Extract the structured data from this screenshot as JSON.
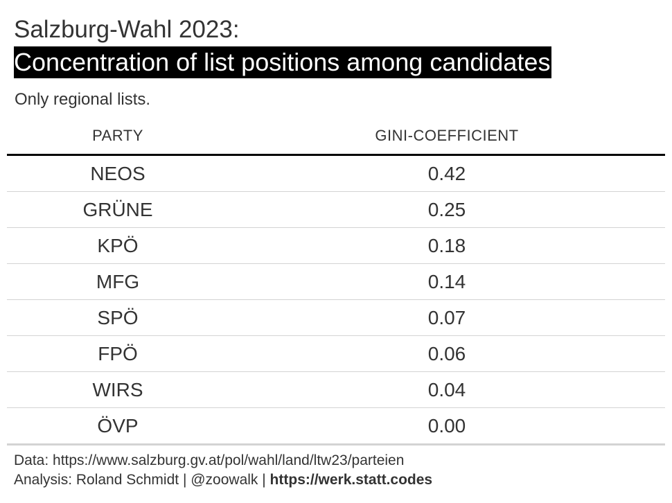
{
  "title": "Salzburg-Wahl 2023:",
  "headline": "Concentration of list positions among candidates",
  "subtitle": "Only regional lists.",
  "chart_data": {
    "type": "table",
    "columns": [
      "PARTY",
      "GINI-COEFFICIENT"
    ],
    "rows": [
      {
        "party": "NEOS",
        "gini": "0.42"
      },
      {
        "party": "GRÜNE",
        "gini": "0.25"
      },
      {
        "party": "KPÖ",
        "gini": "0.18"
      },
      {
        "party": "MFG",
        "gini": "0.14"
      },
      {
        "party": "SPÖ",
        "gini": "0.07"
      },
      {
        "party": "FPÖ",
        "gini": "0.06"
      },
      {
        "party": "WIRS",
        "gini": "0.04"
      },
      {
        "party": "ÖVP",
        "gini": "0.00"
      }
    ]
  },
  "source": {
    "data_line": "Data: https://www.salzburg.gv.at/pol/wahl/land/ltw23/parteien",
    "analysis_prefix": "Analysis: Roland Schmidt | @zoowalk | ",
    "analysis_link": "https://werk.statt.codes"
  }
}
